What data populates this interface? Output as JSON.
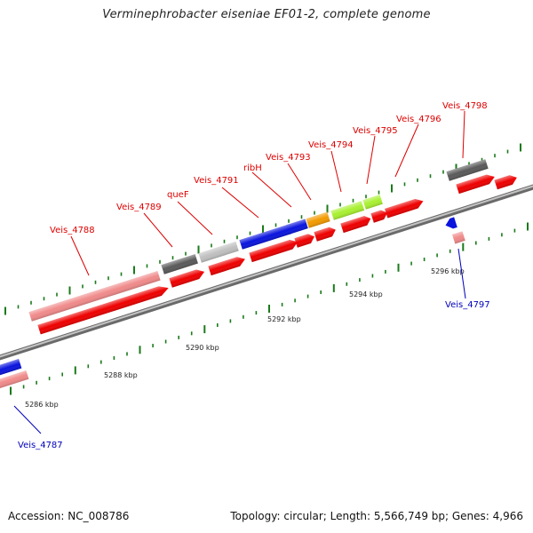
{
  "title": "Verminephrobacter eiseniae EF01-2, complete genome",
  "footer": {
    "accession": "Accession: NC_008786",
    "summary": "Topology: circular; Length: 5,566,749 bp; Genes: 4,966"
  },
  "colors": {
    "backbone": "#8a8a8a",
    "label_forward": "#dd0000",
    "label_reverse": "#0000bb",
    "tick": "#1a7a1a",
    "cds": "#ee0000",
    "pseudo": "#f08a8a",
    "blue": "#0a14dd",
    "grey": "#5a5a5a",
    "lightgrey": "#c0c0c0",
    "orange": "#f29a00",
    "lime": "#a8f030"
  },
  "axis": {
    "unit": "kbp",
    "labels": [
      {
        "text": "5286 kbp"
      },
      {
        "text": "5288 kbp"
      },
      {
        "text": "5290 kbp"
      },
      {
        "text": "5292 kbp"
      },
      {
        "text": "5294 kbp"
      },
      {
        "text": "5296 kbp"
      }
    ]
  },
  "gene_labels": [
    {
      "text": "Veis_4787",
      "strand": "reverse"
    },
    {
      "text": "Veis_4788",
      "strand": "forward"
    },
    {
      "text": "Veis_4789",
      "strand": "forward"
    },
    {
      "text": "queF",
      "strand": "forward"
    },
    {
      "text": "Veis_4791",
      "strand": "forward"
    },
    {
      "text": "ribH",
      "strand": "forward"
    },
    {
      "text": "Veis_4793",
      "strand": "forward"
    },
    {
      "text": "Veis_4794",
      "strand": "forward"
    },
    {
      "text": "Veis_4795",
      "strand": "forward"
    },
    {
      "text": "Veis_4796",
      "strand": "forward"
    },
    {
      "text": "Veis_4797",
      "strand": "reverse"
    },
    {
      "text": "Veis_4798",
      "strand": "forward"
    }
  ]
}
